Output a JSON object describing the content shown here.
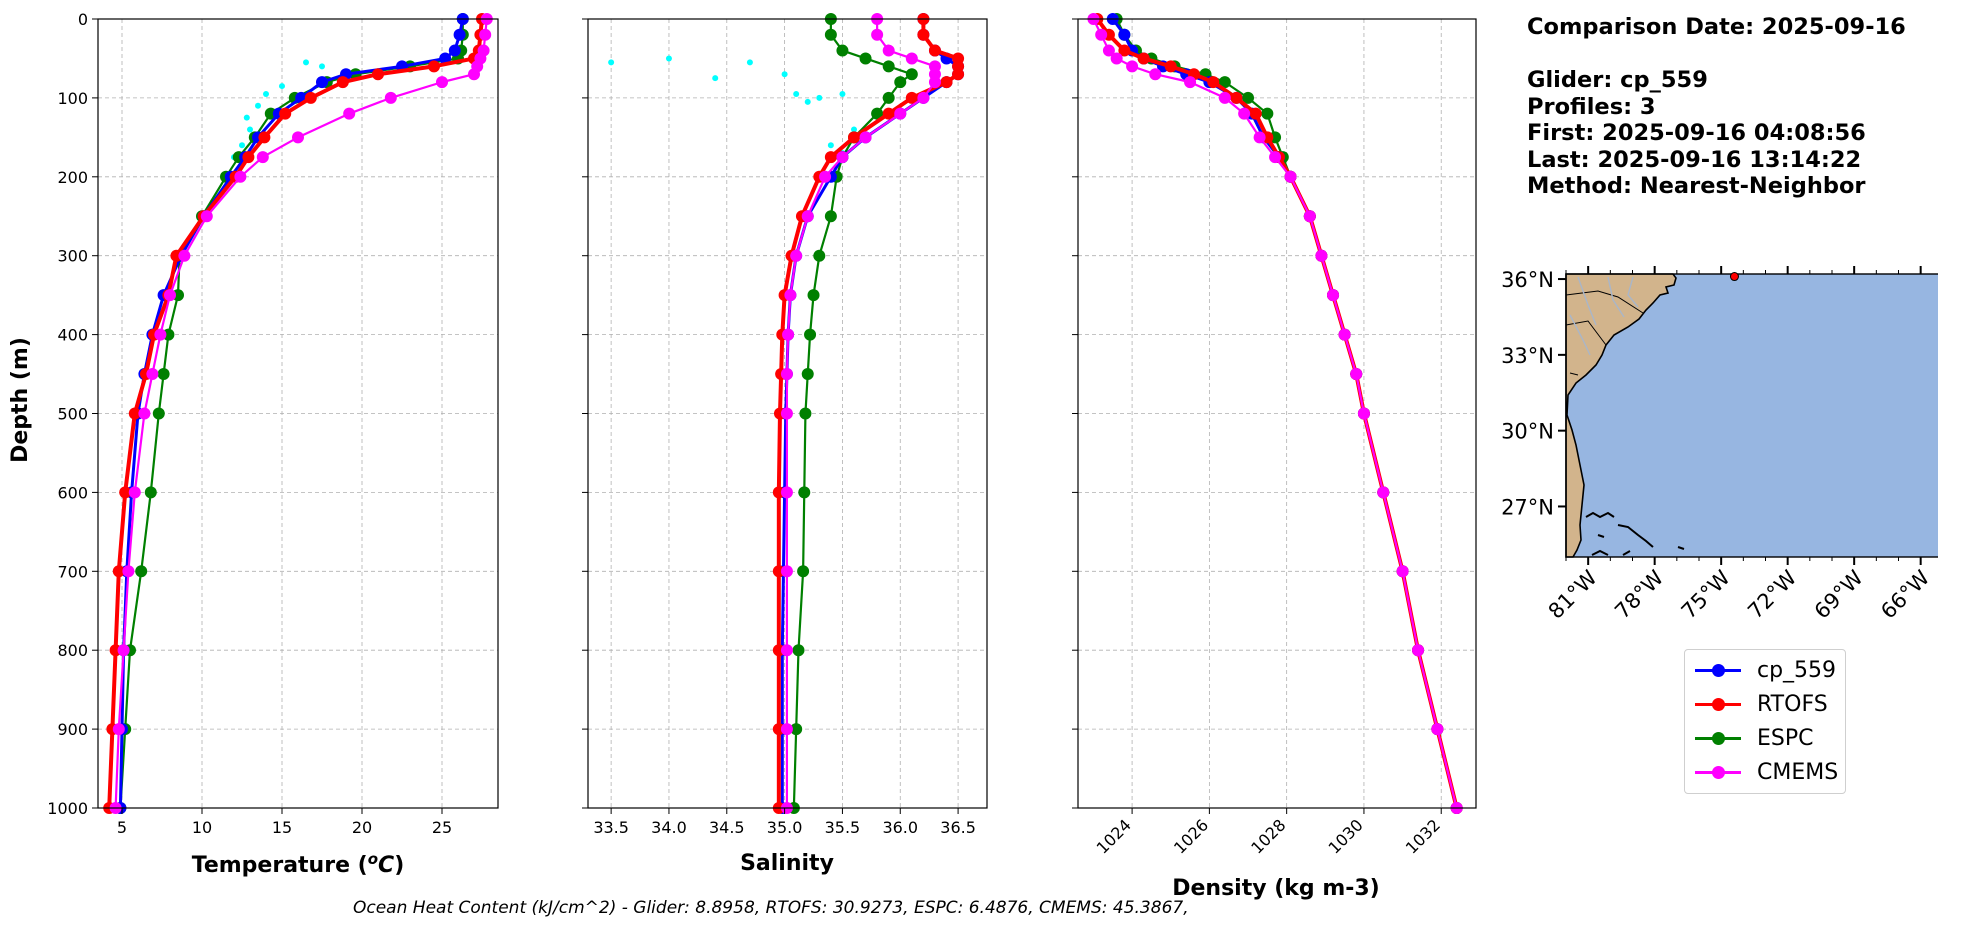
{
  "info": {
    "comparison_date": "Comparison Date: 2025-09-16",
    "glider": "Glider: cp_559",
    "profiles": "Profiles: 3",
    "first": "First: 2025-09-16 04:08:56",
    "last": "Last: 2025-09-16 13:14:22",
    "method": "Method: Nearest-Neighbor"
  },
  "footer": "Ocean Heat Content (kJ/cm^2) - Glider: 8.8958,  RTOFS: 30.9273,  ESPC: 6.4876,  CMEMS: 45.3867,",
  "colors": {
    "glider": "#0000ff",
    "RTOFS": "#ff0000",
    "ESPC": "#008000",
    "CMEMS": "#ff00ff",
    "raw": "#00ffff",
    "land": "#d2b48c",
    "ocean": "#97b6e1"
  },
  "legend": [
    {
      "label": "cp_559",
      "color": "#0000ff"
    },
    {
      "label": "RTOFS",
      "color": "#ff0000"
    },
    {
      "label": "ESPC",
      "color": "#008000"
    },
    {
      "label": "CMEMS",
      "color": "#ff00ff"
    }
  ],
  "map": {
    "lat_labels": [
      "36°N",
      "33°N",
      "30°N",
      "27°N"
    ],
    "lon_labels": [
      "81°W",
      "78°W",
      "75°W",
      "72°W",
      "69°W",
      "66°W"
    ],
    "extent": {
      "lon": [
        -82,
        -64
      ],
      "lat": [
        25,
        36.2
      ]
    },
    "glider_position": {
      "lon": -74.4,
      "lat": 36.1
    }
  },
  "chart_data": [
    {
      "type": "line",
      "title": "",
      "xlabel": "Temperature (°C)",
      "ylabel": "Depth (m)",
      "xlim": [
        3.5,
        28.5
      ],
      "ylim": [
        1000,
        0
      ],
      "xticks": [
        "5",
        "10",
        "15",
        "20",
        "25"
      ],
      "x_tick_values": [
        5,
        10,
        15,
        20,
        25
      ],
      "yticks": [
        "0",
        "100",
        "200",
        "300",
        "400",
        "500",
        "600",
        "700",
        "800",
        "900",
        "1000"
      ],
      "y_tick_values": [
        0,
        100,
        200,
        300,
        400,
        500,
        600,
        700,
        800,
        900,
        1000
      ],
      "grid": true,
      "y": [
        0,
        20,
        40,
        50,
        60,
        70,
        80,
        100,
        120,
        150,
        175,
        200,
        250,
        300,
        350,
        400,
        450,
        500,
        600,
        700,
        800,
        900,
        1000
      ],
      "series": [
        {
          "name": "cp_559",
          "values": [
            26.3,
            26.1,
            25.8,
            25.2,
            22.5,
            19.0,
            17.5,
            16.2,
            14.8,
            13.5,
            12.7,
            11.8,
            10.1,
            8.7,
            7.6,
            6.9,
            6.4,
            6.0,
            5.6,
            5.3,
            5.1,
            5.0,
            4.9
          ]
        },
        {
          "name": "RTOFS",
          "values": [
            27.5,
            27.4,
            27.3,
            27.0,
            24.5,
            21.0,
            18.8,
            16.8,
            15.2,
            13.9,
            12.9,
            12.1,
            10.1,
            8.4,
            7.9,
            7.0,
            6.5,
            5.8,
            5.2,
            4.8,
            4.6,
            4.4,
            4.2
          ]
        },
        {
          "name": "ESPC",
          "values": [
            26.3,
            26.3,
            26.2,
            26.0,
            23.0,
            19.6,
            17.8,
            15.8,
            14.3,
            13.3,
            12.3,
            11.5,
            10.0,
            8.6,
            8.5,
            7.9,
            7.6,
            7.3,
            6.8,
            6.2,
            5.5,
            5.2,
            4.9
          ]
        },
        {
          "name": "CMEMS",
          "values": [
            27.8,
            27.7,
            27.6,
            27.4,
            27.2,
            27.0,
            25.0,
            21.8,
            19.2,
            16.0,
            13.8,
            12.4,
            10.3,
            8.9,
            8.0,
            7.4,
            6.9,
            6.4,
            5.8,
            5.4,
            5.1,
            4.8,
            4.6
          ]
        }
      ],
      "raw_points": {
        "x": [
          16.5,
          17.5,
          15.0,
          14.0,
          13.5,
          12.8,
          14.2,
          13.0,
          12.5,
          12.0
        ],
        "y": [
          55,
          60,
          85,
          95,
          110,
          125,
          120,
          140,
          160,
          175
        ]
      }
    },
    {
      "type": "line",
      "title": "",
      "xlabel": "Salinity",
      "ylabel": "",
      "xlim": [
        33.3,
        36.75
      ],
      "ylim": [
        1000,
        0
      ],
      "xticks": [
        "33.5",
        "34.0",
        "34.5",
        "35.0",
        "35.5",
        "36.0",
        "36.5"
      ],
      "x_tick_values": [
        33.5,
        34.0,
        34.5,
        35.0,
        35.5,
        36.0,
        36.5
      ],
      "grid": true,
      "y": [
        0,
        20,
        40,
        50,
        60,
        70,
        80,
        100,
        120,
        150,
        175,
        200,
        250,
        300,
        350,
        400,
        450,
        500,
        600,
        700,
        800,
        900,
        1000
      ],
      "series": [
        {
          "name": "cp_559",
          "values": [
            36.2,
            36.2,
            36.3,
            36.4,
            36.5,
            36.5,
            36.4,
            36.2,
            36.0,
            35.7,
            35.5,
            35.4,
            35.2,
            35.1,
            35.05,
            35.03,
            35.02,
            35.01,
            35.0,
            34.99,
            34.98,
            34.98,
            34.98
          ]
        },
        {
          "name": "RTOFS",
          "values": [
            36.2,
            36.2,
            36.3,
            36.5,
            36.5,
            36.5,
            36.4,
            36.1,
            35.9,
            35.6,
            35.4,
            35.3,
            35.15,
            35.06,
            35.0,
            34.98,
            34.97,
            34.96,
            34.95,
            34.95,
            34.95,
            34.95,
            34.95
          ]
        },
        {
          "name": "ESPC",
          "values": [
            35.4,
            35.4,
            35.5,
            35.7,
            35.9,
            36.1,
            36.0,
            35.9,
            35.8,
            35.6,
            35.5,
            35.45,
            35.4,
            35.3,
            35.25,
            35.22,
            35.2,
            35.18,
            35.17,
            35.16,
            35.12,
            35.1,
            35.08
          ]
        },
        {
          "name": "CMEMS",
          "values": [
            35.8,
            35.8,
            35.9,
            36.1,
            36.3,
            36.3,
            36.3,
            36.2,
            36.0,
            35.7,
            35.5,
            35.35,
            35.2,
            35.1,
            35.05,
            35.03,
            35.02,
            35.02,
            35.02,
            35.02,
            35.02,
            35.02,
            35.02
          ]
        }
      ],
      "raw_points": {
        "x": [
          33.5,
          34.0,
          34.4,
          34.7,
          35.0,
          35.1,
          35.3,
          35.2,
          35.5,
          35.6,
          35.4,
          35.5
        ],
        "y": [
          55,
          50,
          75,
          55,
          70,
          95,
          100,
          105,
          95,
          140,
          160,
          170
        ]
      }
    },
    {
      "type": "line",
      "title": "",
      "xlabel": "Density (kg m-3)",
      "ylabel": "",
      "xlim": [
        1022.6,
        1032.9
      ],
      "ylim": [
        1000,
        0
      ],
      "xticks": [
        "1024",
        "1026",
        "1028",
        "1030",
        "1032"
      ],
      "x_tick_values": [
        1024,
        1026,
        1028,
        1030,
        1032
      ],
      "grid": true,
      "y": [
        0,
        20,
        40,
        50,
        60,
        70,
        80,
        100,
        120,
        150,
        175,
        200,
        250,
        300,
        350,
        400,
        450,
        500,
        600,
        700,
        800,
        900,
        1000
      ],
      "series": [
        {
          "name": "cp_559",
          "values": [
            1023.5,
            1023.8,
            1024.0,
            1024.3,
            1024.8,
            1025.4,
            1026.0,
            1026.7,
            1027.1,
            1027.4,
            1027.8,
            1028.1,
            1028.6,
            1028.9,
            1029.2,
            1029.5,
            1029.8,
            1030.0,
            1030.5,
            1031.0,
            1031.4,
            1031.9,
            1032.4
          ]
        },
        {
          "name": "RTOFS",
          "values": [
            1023.1,
            1023.4,
            1023.8,
            1024.3,
            1025.0,
            1025.6,
            1026.1,
            1026.7,
            1027.2,
            1027.5,
            1027.8,
            1028.1,
            1028.6,
            1028.9,
            1029.2,
            1029.5,
            1029.8,
            1030.0,
            1030.5,
            1031.0,
            1031.4,
            1031.9,
            1032.4
          ]
        },
        {
          "name": "ESPC",
          "values": [
            1023.6,
            1023.8,
            1024.1,
            1024.5,
            1025.1,
            1025.9,
            1026.4,
            1027.0,
            1027.5,
            1027.7,
            1027.9,
            1028.1,
            1028.6,
            1028.9,
            1029.2,
            1029.5,
            1029.8,
            1030.0,
            1030.5,
            1031.0,
            1031.4,
            1031.9,
            1032.4
          ]
        },
        {
          "name": "CMEMS",
          "values": [
            1023.0,
            1023.2,
            1023.4,
            1023.6,
            1024.0,
            1024.6,
            1025.5,
            1026.4,
            1026.9,
            1027.3,
            1027.7,
            1028.1,
            1028.6,
            1028.9,
            1029.2,
            1029.5,
            1029.8,
            1030.0,
            1030.5,
            1031.0,
            1031.4,
            1031.9,
            1032.4
          ]
        }
      ]
    }
  ]
}
